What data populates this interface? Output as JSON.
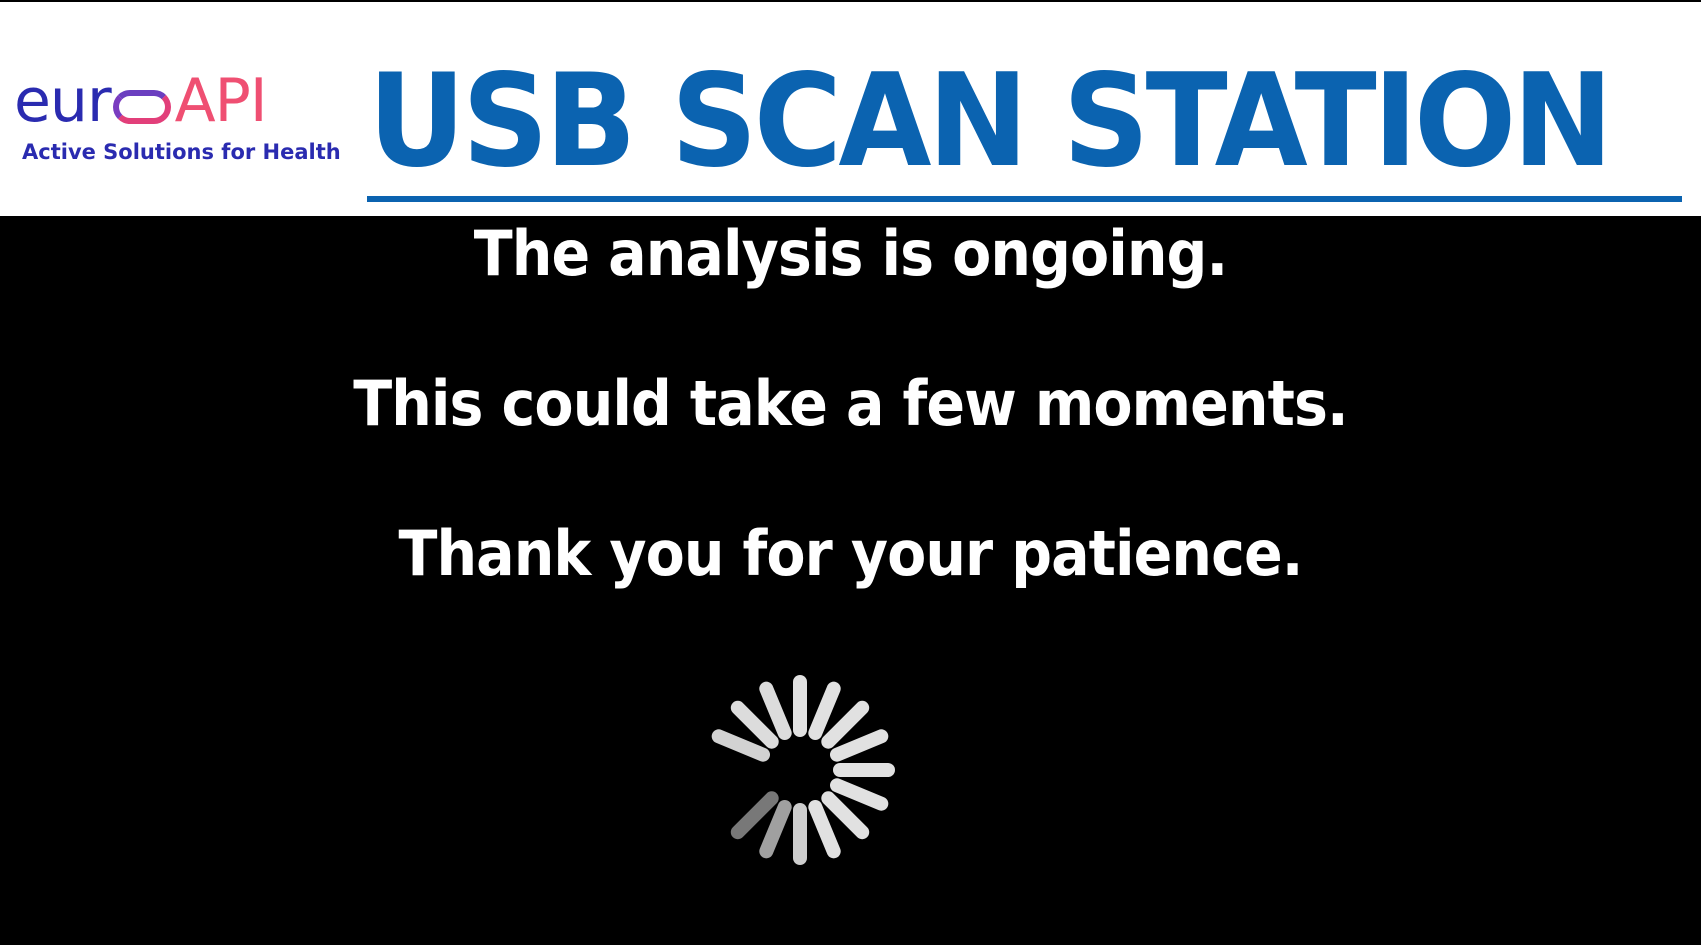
{
  "header": {
    "logo": {
      "brand_part1": "eur",
      "brand_part2": "API",
      "tagline": "Active Solutions for Health"
    },
    "title": "USB SCAN STATION",
    "brand_colors": {
      "blue": "#2a2bb0",
      "pink": "#ef4f72",
      "title_blue": "#0b63b0"
    }
  },
  "messages": [
    "The analysis is ongoing.",
    "This could take a few moments.",
    "Thank you for your patience."
  ],
  "spinner": {
    "icon": "loading-spinner-icon",
    "status": "loading"
  }
}
